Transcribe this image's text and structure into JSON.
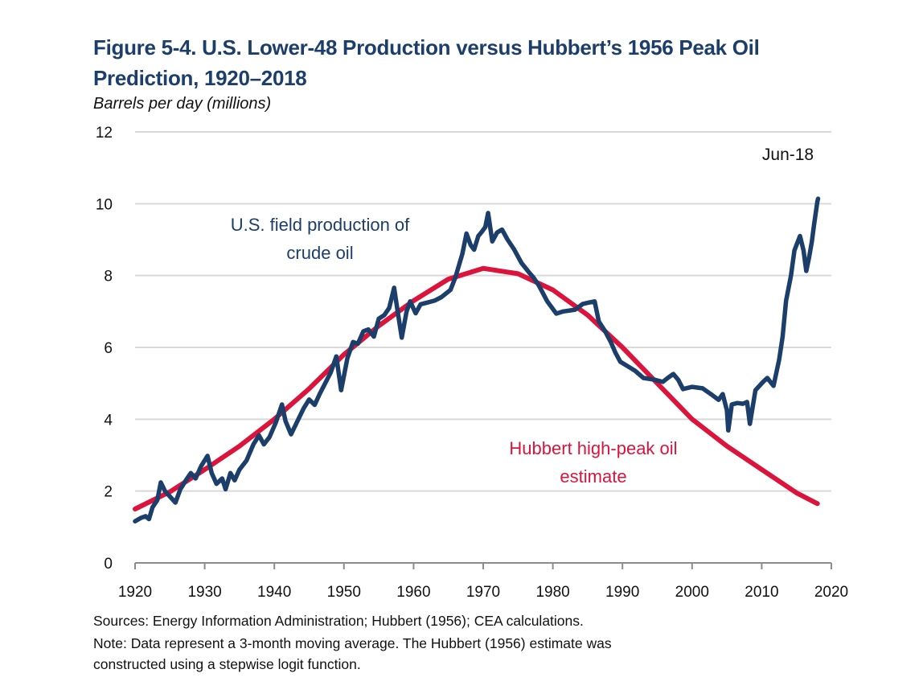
{
  "chart_data": {
    "type": "line",
    "title": "Figure 5-4. U.S. Lower-48 Production versus Hubbert’s 1956 Peak Oil Prediction, 1920–2018",
    "ylabel": "Barrels per day (millions)",
    "xlabel": "",
    "xlim": [
      1920,
      2020
    ],
    "ylim": [
      0,
      12
    ],
    "x_ticks": [
      1920,
      1930,
      1940,
      1950,
      1960,
      1970,
      1980,
      1990,
      2000,
      2010,
      2020
    ],
    "y_ticks": [
      0,
      2,
      4,
      6,
      8,
      10,
      12
    ],
    "grid": "horizontal",
    "series": [
      {
        "name": "U.S. field production of crude oil",
        "color": "#1c3e6b",
        "points": [
          [
            1920.0,
            1.16
          ],
          [
            1920.8,
            1.25
          ],
          [
            1921.5,
            1.3
          ],
          [
            1922.0,
            1.22
          ],
          [
            1922.5,
            1.55
          ],
          [
            1923.2,
            1.75
          ],
          [
            1923.7,
            2.24
          ],
          [
            1924.3,
            2.0
          ],
          [
            1925.0,
            1.85
          ],
          [
            1925.8,
            1.68
          ],
          [
            1926.5,
            2.05
          ],
          [
            1927.3,
            2.3
          ],
          [
            1928.0,
            2.5
          ],
          [
            1928.7,
            2.35
          ],
          [
            1929.5,
            2.7
          ],
          [
            1930.4,
            2.98
          ],
          [
            1931.0,
            2.5
          ],
          [
            1931.7,
            2.2
          ],
          [
            1932.5,
            2.35
          ],
          [
            1933.0,
            2.05
          ],
          [
            1933.7,
            2.5
          ],
          [
            1934.3,
            2.3
          ],
          [
            1935.0,
            2.6
          ],
          [
            1936.0,
            2.85
          ],
          [
            1937.0,
            3.3
          ],
          [
            1937.8,
            3.55
          ],
          [
            1938.5,
            3.3
          ],
          [
            1939.3,
            3.5
          ],
          [
            1940.2,
            3.9
          ],
          [
            1941.1,
            4.41
          ],
          [
            1941.6,
            3.95
          ],
          [
            1942.4,
            3.58
          ],
          [
            1943.2,
            3.9
          ],
          [
            1944.2,
            4.3
          ],
          [
            1945.0,
            4.55
          ],
          [
            1945.8,
            4.4
          ],
          [
            1946.5,
            4.7
          ],
          [
            1947.3,
            5.0
          ],
          [
            1948.1,
            5.3
          ],
          [
            1948.9,
            5.75
          ],
          [
            1949.6,
            4.81
          ],
          [
            1950.5,
            5.7
          ],
          [
            1951.3,
            6.15
          ],
          [
            1952.0,
            6.1
          ],
          [
            1952.8,
            6.45
          ],
          [
            1953.5,
            6.5
          ],
          [
            1954.3,
            6.3
          ],
          [
            1955.0,
            6.8
          ],
          [
            1955.8,
            6.9
          ],
          [
            1956.5,
            7.1
          ],
          [
            1957.2,
            7.66
          ],
          [
            1957.8,
            6.9
          ],
          [
            1958.3,
            6.27
          ],
          [
            1959.0,
            7.0
          ],
          [
            1959.5,
            7.28
          ],
          [
            1960.3,
            6.95
          ],
          [
            1961.0,
            7.2
          ],
          [
            1962.0,
            7.25
          ],
          [
            1963.0,
            7.3
          ],
          [
            1964.0,
            7.4
          ],
          [
            1965.3,
            7.6
          ],
          [
            1966.0,
            7.95
          ],
          [
            1967.0,
            8.6
          ],
          [
            1967.6,
            9.17
          ],
          [
            1968.2,
            8.85
          ],
          [
            1968.7,
            8.72
          ],
          [
            1969.3,
            9.1
          ],
          [
            1969.8,
            9.22
          ],
          [
            1970.3,
            9.35
          ],
          [
            1970.7,
            9.74
          ],
          [
            1971.3,
            8.95
          ],
          [
            1972.0,
            9.2
          ],
          [
            1972.7,
            9.28
          ],
          [
            1973.5,
            9.0
          ],
          [
            1974.4,
            8.74
          ],
          [
            1975.5,
            8.35
          ],
          [
            1976.7,
            8.06
          ],
          [
            1977.2,
            7.95
          ],
          [
            1978.0,
            7.72
          ],
          [
            1979.2,
            7.28
          ],
          [
            1980.5,
            6.94
          ],
          [
            1981.5,
            7.0
          ],
          [
            1983.2,
            7.05
          ],
          [
            1984.3,
            7.21
          ],
          [
            1985.2,
            7.25
          ],
          [
            1986.0,
            7.28
          ],
          [
            1986.6,
            6.72
          ],
          [
            1987.5,
            6.45
          ],
          [
            1988.3,
            6.16
          ],
          [
            1989.0,
            5.85
          ],
          [
            1989.7,
            5.6
          ],
          [
            1990.7,
            5.48
          ],
          [
            1991.8,
            5.35
          ],
          [
            1993.0,
            5.15
          ],
          [
            1994.6,
            5.1
          ],
          [
            1995.8,
            5.04
          ],
          [
            1996.5,
            5.15
          ],
          [
            1997.3,
            5.26
          ],
          [
            1998.0,
            5.1
          ],
          [
            1998.7,
            4.84
          ],
          [
            2000.0,
            4.9
          ],
          [
            2001.5,
            4.86
          ],
          [
            2002.7,
            4.7
          ],
          [
            2003.8,
            4.54
          ],
          [
            2004.4,
            4.7
          ],
          [
            2005.0,
            4.25
          ],
          [
            2005.2,
            3.69
          ],
          [
            2005.7,
            4.41
          ],
          [
            2006.5,
            4.45
          ],
          [
            2007.3,
            4.43
          ],
          [
            2007.9,
            4.48
          ],
          [
            2008.3,
            3.87
          ],
          [
            2009.1,
            4.81
          ],
          [
            2010.2,
            5.04
          ],
          [
            2010.8,
            5.15
          ],
          [
            2011.7,
            4.93
          ],
          [
            2012.5,
            5.66
          ],
          [
            2013.0,
            6.3
          ],
          [
            2013.5,
            7.3
          ],
          [
            2014.2,
            8.0
          ],
          [
            2014.7,
            8.7
          ],
          [
            2015.5,
            9.1
          ],
          [
            2016.0,
            8.7
          ],
          [
            2016.4,
            8.13
          ],
          [
            2016.8,
            8.5
          ],
          [
            2017.2,
            8.95
          ],
          [
            2017.5,
            9.4
          ],
          [
            2018.0,
            10.07
          ],
          [
            2018.1,
            10.14
          ]
        ]
      },
      {
        "name": "Hubbert high-peak oil estimate",
        "color": "#dc143c",
        "points": [
          [
            1920,
            1.5
          ],
          [
            1925,
            1.98
          ],
          [
            1930,
            2.6
          ],
          [
            1935,
            3.25
          ],
          [
            1940,
            4.0
          ],
          [
            1945,
            4.85
          ],
          [
            1950,
            5.8
          ],
          [
            1955,
            6.6
          ],
          [
            1960,
            7.3
          ],
          [
            1965,
            7.9
          ],
          [
            1970,
            8.2
          ],
          [
            1975,
            8.05
          ],
          [
            1980,
            7.6
          ],
          [
            1985,
            6.9
          ],
          [
            1990,
            6.0
          ],
          [
            1995,
            5.0
          ],
          [
            2000,
            4.0
          ],
          [
            2005,
            3.25
          ],
          [
            2010,
            2.6
          ],
          [
            2015,
            1.95
          ],
          [
            2018,
            1.65
          ]
        ]
      }
    ],
    "annotations": {
      "production_label": [
        "U.S. field production of",
        "crude oil"
      ],
      "hubbert_label": [
        "Hubbert high-peak oil",
        "estimate"
      ],
      "end_label": "Jun-18"
    }
  },
  "footnotes": {
    "sources": "Sources: Energy Information Administration; Hubbert (1956); CEA calculations.",
    "note_line1": "Note: Data represent a 3-month moving average.  The Hubbert (1956) estimate was",
    "note_line2": "constructed using a stepwise logit function."
  },
  "colors": {
    "title": "#1c3e6b",
    "production": "#1c3e6b",
    "hubbert": "#dc143c",
    "grid": "#d9d9d9",
    "axis": "#8c8c8c"
  }
}
